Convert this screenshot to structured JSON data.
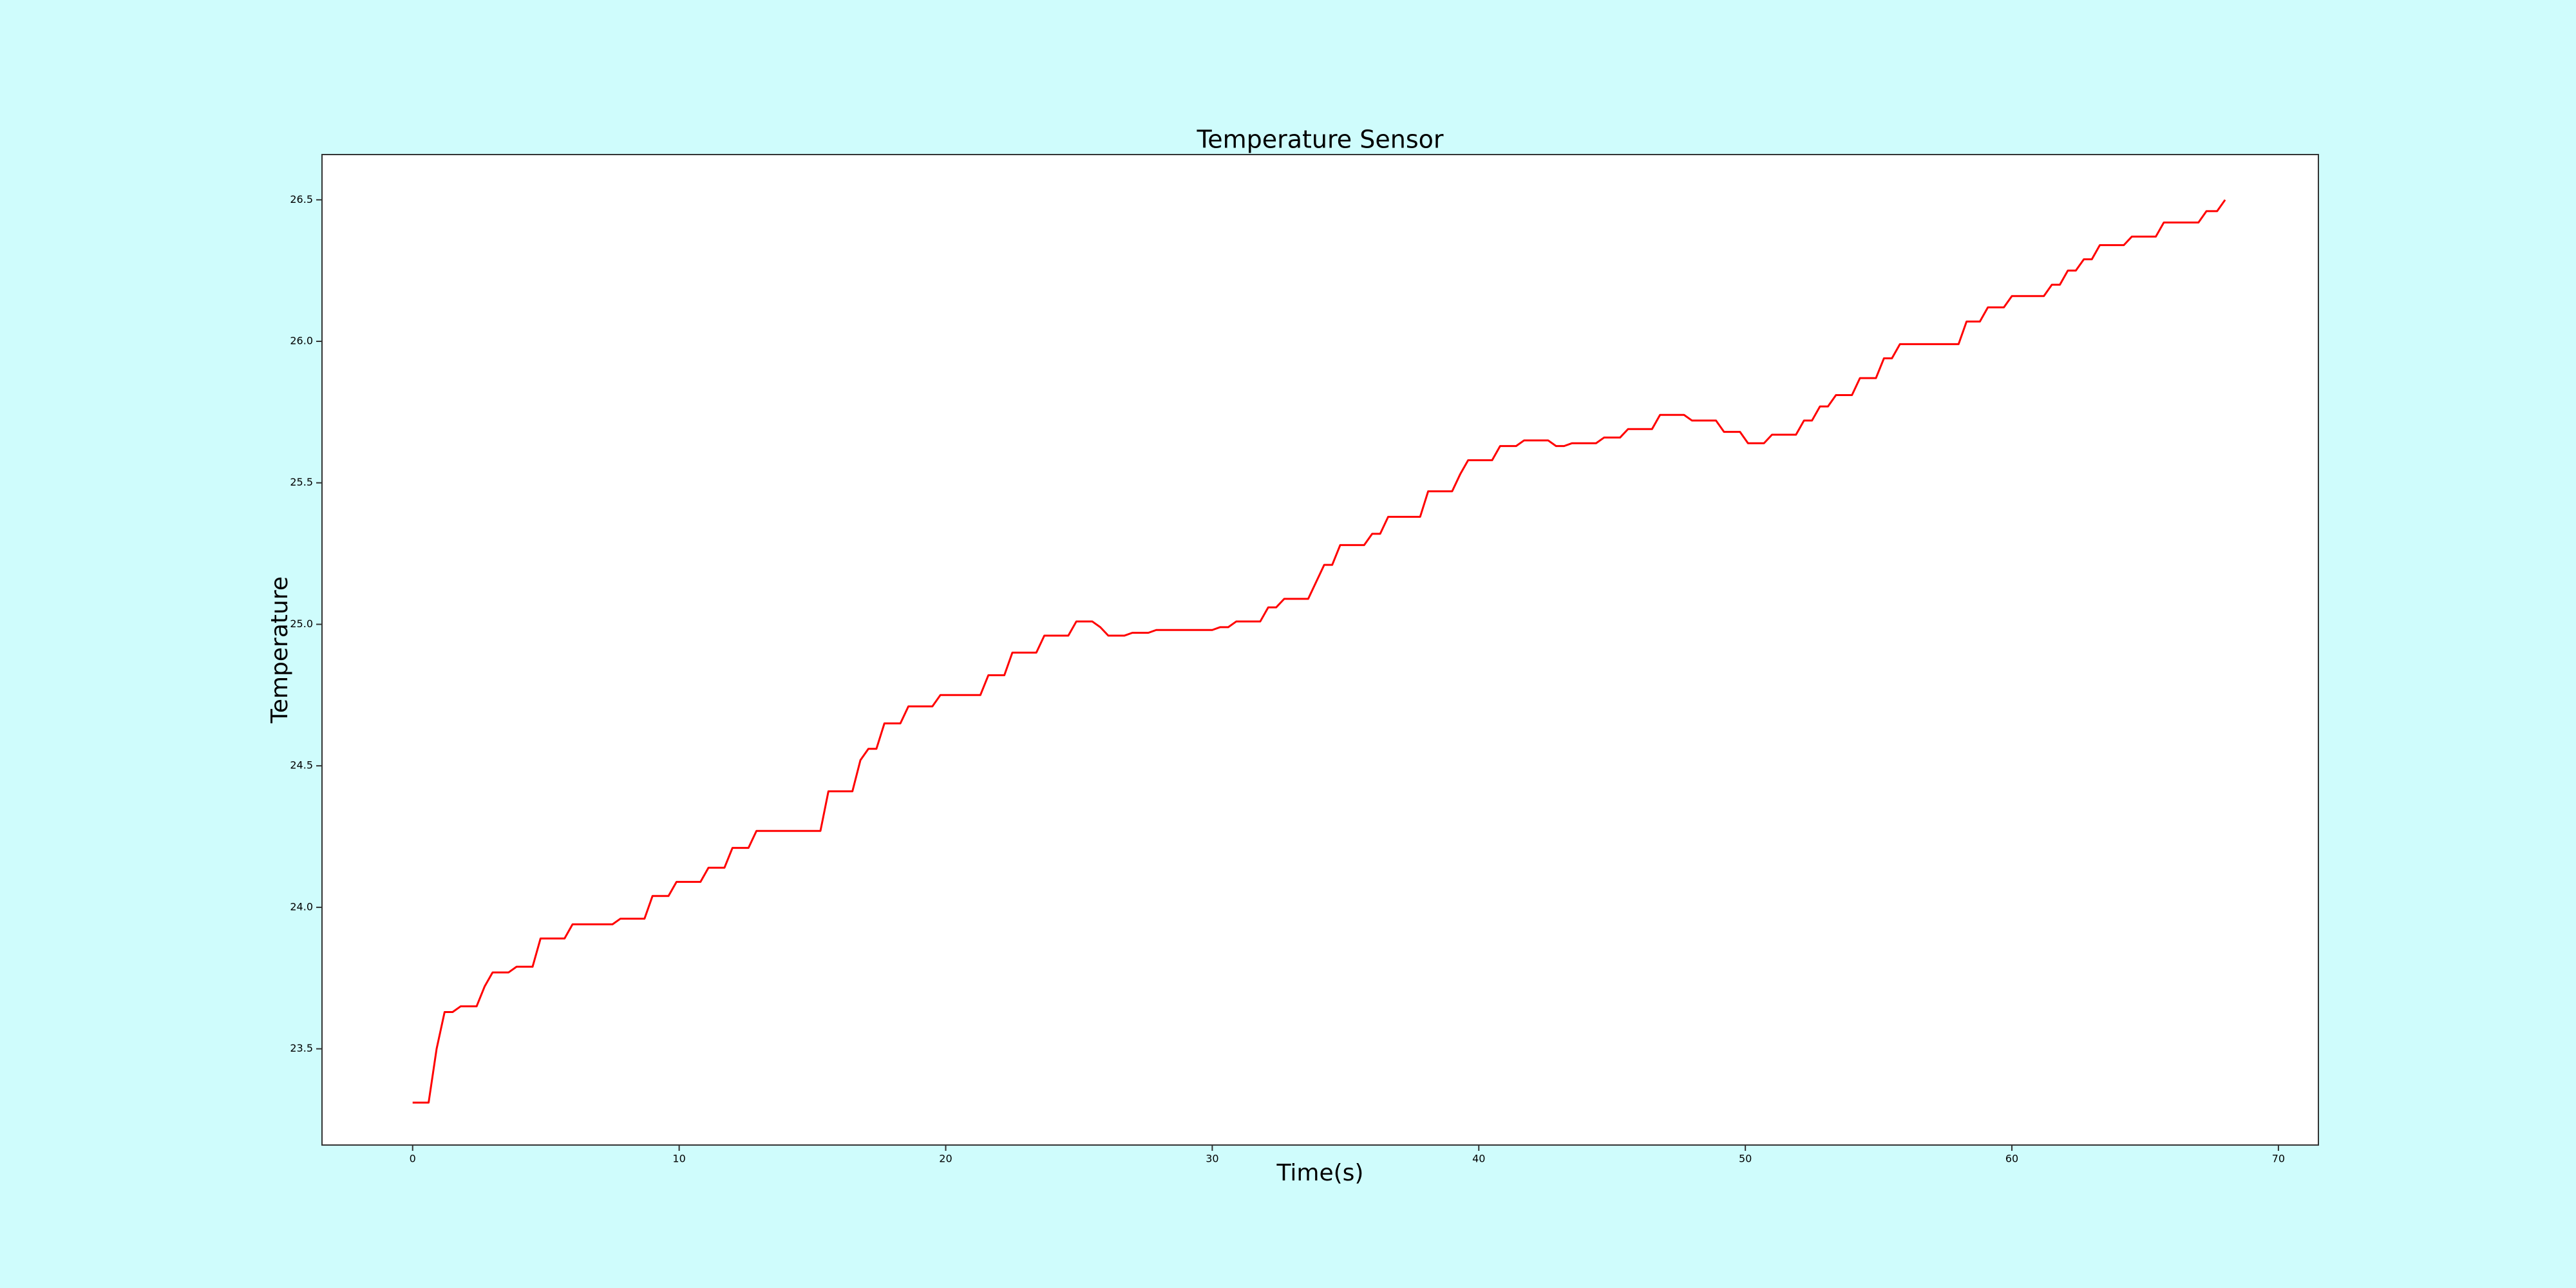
{
  "chart_data": {
    "type": "line",
    "title": "Temperature Sensor",
    "x_label": "Time(s)",
    "y_label": "Temperature",
    "x": [
      0,
      0.6,
      0.9,
      1.2,
      1.5,
      1.8,
      2.4,
      2.7,
      3.0,
      3.6,
      3.9,
      4.5,
      4.8,
      5.7,
      6.0,
      7.5,
      7.8,
      8.7,
      9.0,
      9.6,
      9.9,
      10.8,
      11.1,
      11.7,
      12.0,
      12.6,
      12.9,
      15.3,
      15.6,
      16.5,
      16.8,
      17.1,
      17.4,
      17.7,
      18.3,
      18.6,
      19.5,
      19.8,
      21.3,
      21.6,
      22.2,
      22.5,
      23.4,
      23.7,
      24.6,
      24.9,
      25.5,
      25.8,
      26.1,
      26.7,
      27.0,
      27.6,
      27.9,
      30.0,
      30.3,
      30.6,
      30.9,
      31.8,
      32.1,
      32.4,
      32.7,
      33.6,
      33.9,
      34.2,
      34.5,
      34.8,
      35.7,
      36.0,
      36.3,
      36.6,
      37.8,
      38.1,
      39.0,
      39.3,
      39.6,
      40.5,
      40.8,
      41.4,
      41.7,
      42.6,
      42.9,
      43.2,
      43.5,
      44.4,
      44.7,
      45.3,
      45.6,
      46.5,
      46.8,
      47.7,
      48.0,
      48.9,
      49.2,
      49.8,
      50.1,
      50.7,
      51.0,
      51.9,
      52.2,
      52.5,
      52.8,
      53.1,
      53.4,
      54.0,
      54.3,
      54.9,
      55.2,
      55.5,
      55.8,
      58.0,
      58.3,
      58.8,
      59.1,
      59.7,
      60.0,
      61.2,
      61.5,
      61.8,
      62.1,
      62.4,
      62.7,
      63.0,
      63.3,
      64.2,
      64.5,
      65.4,
      65.7,
      67.0,
      67.3,
      67.7,
      68.0
    ],
    "series": [
      {
        "name": "Temperature",
        "color": "#ff0000",
        "values": [
          23.31,
          23.31,
          23.5,
          23.63,
          23.63,
          23.65,
          23.65,
          23.72,
          23.77,
          23.77,
          23.79,
          23.79,
          23.89,
          23.89,
          23.94,
          23.94,
          23.96,
          23.96,
          24.04,
          24.04,
          24.09,
          24.09,
          24.14,
          24.14,
          24.21,
          24.21,
          24.27,
          24.27,
          24.41,
          24.41,
          24.52,
          24.56,
          24.56,
          24.65,
          24.65,
          24.71,
          24.71,
          24.75,
          24.75,
          24.82,
          24.82,
          24.9,
          24.9,
          24.96,
          24.96,
          25.01,
          25.01,
          24.99,
          24.96,
          24.96,
          24.97,
          24.97,
          24.98,
          24.98,
          24.99,
          24.99,
          25.01,
          25.01,
          25.06,
          25.06,
          25.09,
          25.09,
          25.15,
          25.21,
          25.21,
          25.28,
          25.28,
          25.32,
          25.32,
          25.38,
          25.38,
          25.47,
          25.47,
          25.53,
          25.58,
          25.58,
          25.63,
          25.63,
          25.65,
          25.65,
          25.63,
          25.63,
          25.64,
          25.64,
          25.66,
          25.66,
          25.69,
          25.69,
          25.74,
          25.74,
          25.72,
          25.72,
          25.68,
          25.68,
          25.64,
          25.64,
          25.67,
          25.67,
          25.72,
          25.72,
          25.77,
          25.77,
          25.81,
          25.81,
          25.87,
          25.87,
          25.94,
          25.94,
          25.99,
          25.99,
          26.07,
          26.07,
          26.12,
          26.12,
          26.16,
          26.16,
          26.2,
          26.2,
          26.25,
          26.25,
          26.29,
          26.29,
          26.34,
          26.34,
          26.37,
          26.37,
          26.42,
          26.42,
          26.46,
          26.46,
          26.5
        ]
      }
    ],
    "xlim": [
      -3.4,
      71.5
    ],
    "xticks": [
      0,
      10,
      20,
      30,
      40,
      50,
      60,
      70
    ],
    "ylim": [
      23.16,
      26.66
    ],
    "yticks": [
      23.5,
      {
        "value": 24,
        "label": "24.0"
      },
      24.5,
      {
        "value": 25,
        "label": "25.0"
      },
      25.5,
      {
        "value": 26,
        "label": "26.0"
      },
      26.5
    ]
  }
}
